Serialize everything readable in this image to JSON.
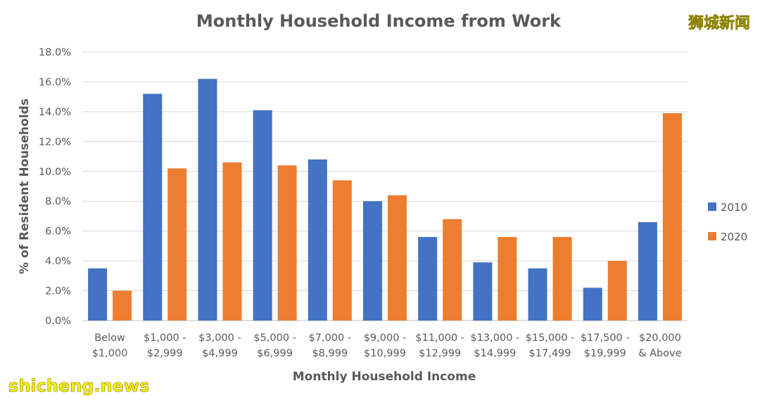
{
  "watermarks": {
    "top": "狮城新闻",
    "bottom": "shicheng.news"
  },
  "chart_data": {
    "type": "bar",
    "title": "Monthly Household Income from Work",
    "xlabel": "Monthly Household Income",
    "ylabel": "% of Resident Households",
    "ylim": [
      0,
      18
    ],
    "ytick_step": 2,
    "ytick_labels": [
      "0.0%",
      "2.0%",
      "4.0%",
      "6.0%",
      "8.0%",
      "10.0%",
      "12.0%",
      "14.0%",
      "16.0%",
      "18.0%"
    ],
    "grid": true,
    "legend_position": "right",
    "categories": [
      [
        "Below",
        "$1,000"
      ],
      [
        "$1,000 -",
        "$2,999"
      ],
      [
        "$3,000 -",
        "$4,999"
      ],
      [
        "$5,000 -",
        "$6,999"
      ],
      [
        "$7,000 -",
        "$8,999"
      ],
      [
        "$9,000 -",
        "$10,999"
      ],
      [
        "$11,000 -",
        "$12,999"
      ],
      [
        "$13,000 -",
        "$14,999"
      ],
      [
        "$15,000 -",
        "$17,499"
      ],
      [
        "$17,500 -",
        "$19,999"
      ],
      [
        "$20,000",
        "& Above"
      ]
    ],
    "series": [
      {
        "name": "2010",
        "color": "#4472c4",
        "values": [
          3.5,
          15.2,
          16.2,
          14.1,
          10.8,
          8.0,
          5.6,
          3.9,
          3.5,
          2.2,
          6.6
        ]
      },
      {
        "name": "2020",
        "color": "#ed7d31",
        "values": [
          2.0,
          10.2,
          10.6,
          10.4,
          9.4,
          8.4,
          6.8,
          5.6,
          5.6,
          4.0,
          13.9
        ]
      }
    ]
  }
}
